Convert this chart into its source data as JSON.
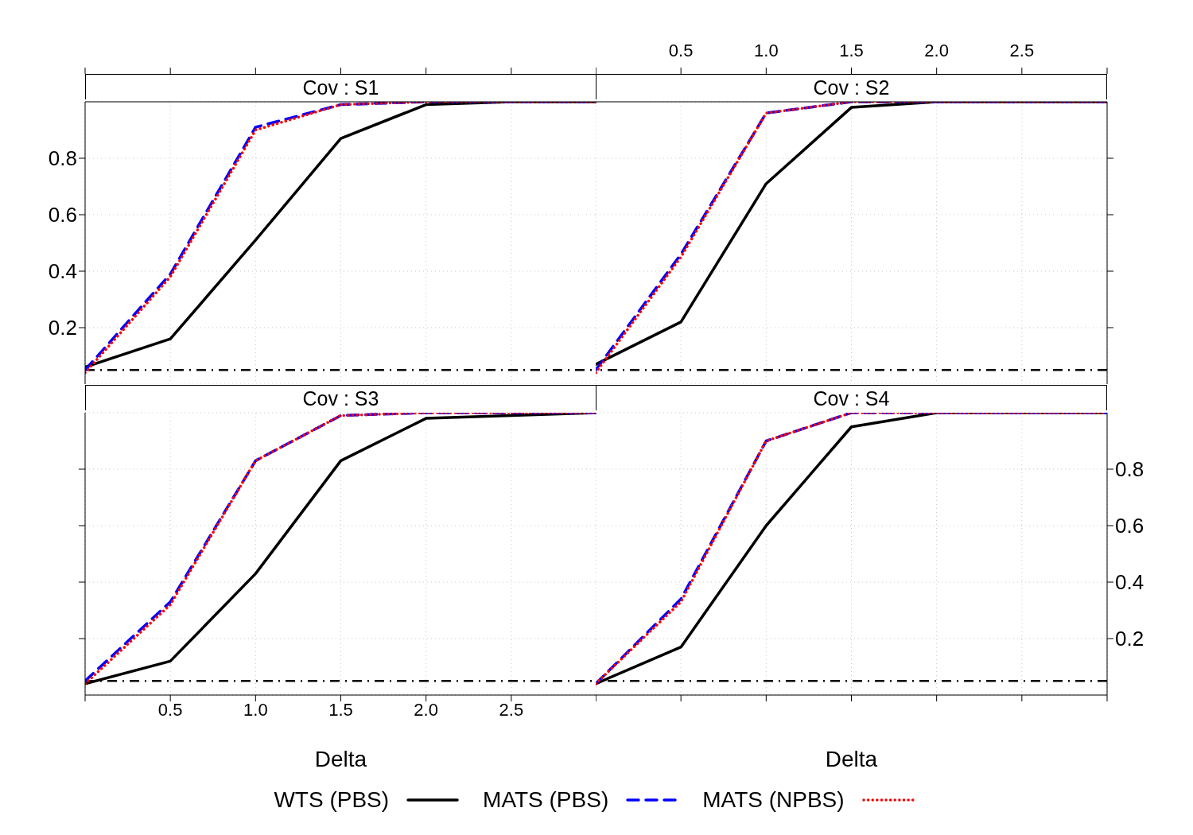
{
  "chart_data": [
    {
      "type": "line",
      "title": "Cov : S1",
      "x": [
        0,
        0.5,
        1,
        1.5,
        2,
        2.5,
        3
      ],
      "xlim": [
        0,
        3
      ],
      "xticks": [
        0,
        0.5,
        1,
        1.5,
        2,
        2.5,
        3
      ],
      "ylim": [
        0,
        1
      ],
      "yticks": [
        0.2,
        0.4,
        0.6,
        0.8
      ],
      "tick_labels": "y",
      "grid": true,
      "legend": "bottom",
      "series": [
        {
          "name": "WTS (PBS)",
          "color": "#000000",
          "line_style": "solid",
          "values": [
            0.06,
            0.16,
            0.51,
            0.87,
            0.99,
            1.0,
            1.0
          ]
        },
        {
          "name": "MATS (PBS)",
          "color": "#0000ff",
          "line_style": "dashed",
          "values": [
            0.05,
            0.39,
            0.91,
            0.99,
            1.0,
            1.0,
            1.0
          ]
        },
        {
          "name": "MATS (NPBS)",
          "color": "#ff0000",
          "line_style": "dotted",
          "values": [
            0.04,
            0.38,
            0.9,
            0.99,
            1.0,
            1.0,
            1.0
          ]
        }
      ],
      "ref_lines": [
        {
          "axis": "y",
          "value": 0.05,
          "color": "#000000",
          "line_style": "dashed"
        }
      ]
    },
    {
      "type": "line",
      "title": "Cov : S2",
      "x": [
        0,
        0.5,
        1,
        1.5,
        2,
        2.5,
        3
      ],
      "xlim": [
        0,
        3
      ],
      "xticks": [
        {
          "value": 0,
          "label": null
        },
        0.5,
        {
          "value": 1,
          "label": "1.0"
        },
        1.5,
        {
          "value": 2,
          "label": "2.0"
        },
        2.5,
        {
          "value": 3,
          "label": null
        }
      ],
      "ylim": [
        0,
        1
      ],
      "yticks": [
        0.2,
        0.4,
        0.6,
        0.8
      ],
      "tick_labels": "x",
      "grid": true,
      "series": [
        {
          "color": "#000000",
          "line_style": "solid",
          "values": [
            0.07,
            0.22,
            0.71,
            0.98,
            1.0,
            1.0,
            1.0
          ]
        },
        {
          "color": "#0000ff",
          "line_style": "dashed",
          "values": [
            0.05,
            0.46,
            0.96,
            1.0,
            1.0,
            1.0,
            1.0
          ]
        },
        {
          "color": "#ff0000",
          "line_style": "dotted",
          "values": [
            0.04,
            0.45,
            0.96,
            1.0,
            1.0,
            1.0,
            1.0
          ]
        }
      ],
      "ref_lines": [
        {
          "axis": "y",
          "value": 0.05,
          "color": "#000000",
          "line_style": "dashed"
        }
      ]
    },
    {
      "type": "line",
      "title": "Cov : S3",
      "xlabel": "Delta",
      "x": [
        0,
        0.5,
        1,
        1.5,
        2,
        2.5,
        3
      ],
      "xlim": [
        0,
        3
      ],
      "xticks": [
        {
          "value": 0,
          "label": null
        },
        0.5,
        {
          "value": 1,
          "label": "1.0"
        },
        1.5,
        {
          "value": 2,
          "label": "2.0"
        },
        2.5,
        {
          "value": 3,
          "label": null
        }
      ],
      "ylim": [
        0,
        1
      ],
      "yticks": [
        0.2,
        0.4,
        0.6,
        0.8
      ],
      "tick_labels": "x",
      "grid": true,
      "series": [
        {
          "color": "#000000",
          "line_style": "solid",
          "values": [
            0.04,
            0.12,
            0.43,
            0.83,
            0.98,
            0.99,
            1.0
          ]
        },
        {
          "color": "#0000ff",
          "line_style": "dashed",
          "values": [
            0.05,
            0.33,
            0.83,
            0.99,
            1.0,
            1.0,
            1.0
          ]
        },
        {
          "color": "#ff0000",
          "line_style": "dotted",
          "values": [
            0.04,
            0.32,
            0.83,
            0.99,
            1.0,
            1.0,
            1.0
          ]
        }
      ],
      "ref_lines": [
        {
          "axis": "y",
          "value": 0.05,
          "color": "#000000",
          "line_style": "dashed"
        }
      ]
    },
    {
      "type": "line",
      "title": "Cov : S4",
      "xlabel": "Delta",
      "x": [
        0,
        0.5,
        1,
        1.5,
        2,
        2.5,
        3
      ],
      "xlim": [
        0,
        3
      ],
      "xticks": [
        0,
        0.5,
        1,
        1.5,
        2,
        2.5,
        3
      ],
      "ylim": [
        0,
        1
      ],
      "yticks": [
        0.2,
        0.4,
        0.6,
        0.8
      ],
      "tick_labels": "y",
      "grid": true,
      "series": [
        {
          "color": "#000000",
          "line_style": "solid",
          "values": [
            0.04,
            0.17,
            0.6,
            0.95,
            1.0,
            1.0,
            1.0
          ]
        },
        {
          "color": "#0000ff",
          "line_style": "dashed",
          "values": [
            0.04,
            0.34,
            0.9,
            1.0,
            1.0,
            1.0,
            1.0
          ]
        },
        {
          "color": "#ff0000",
          "line_style": "dotted",
          "values": [
            0.04,
            0.33,
            0.9,
            1.0,
            1.0,
            1.0,
            1.0
          ]
        }
      ],
      "ref_lines": [
        {
          "axis": "y",
          "value": 0.05,
          "color": "#000000",
          "line_style": "dashed"
        }
      ]
    }
  ]
}
